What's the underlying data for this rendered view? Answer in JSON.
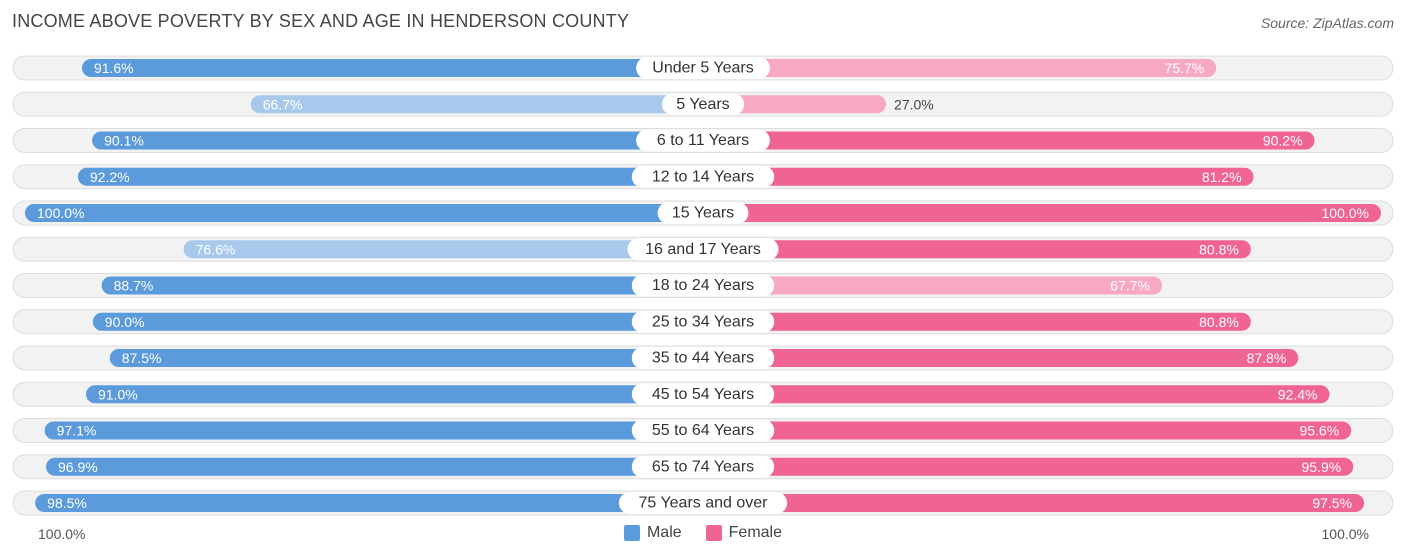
{
  "chart_data": {
    "type": "bar",
    "orientation": "horizontal-diverging",
    "title": "INCOME ABOVE POVERTY BY SEX AND AGE IN HENDERSON COUNTY",
    "source": "Source: ZipAtlas.com",
    "categories": [
      "Under 5 Years",
      "5 Years",
      "6 to 11 Years",
      "12 to 14 Years",
      "15 Years",
      "16 and 17 Years",
      "18 to 24 Years",
      "25 to 34 Years",
      "35 to 44 Years",
      "45 to 54 Years",
      "55 to 64 Years",
      "65 to 74 Years",
      "75 Years and over"
    ],
    "series": [
      {
        "name": "Male",
        "values": [
          91.6,
          66.7,
          90.1,
          92.2,
          100.0,
          76.6,
          88.7,
          90.0,
          87.5,
          91.0,
          97.1,
          96.9,
          98.5
        ],
        "labels": [
          "91.6%",
          "66.7%",
          "90.1%",
          "92.2%",
          "100.0%",
          "76.6%",
          "88.7%",
          "90.0%",
          "87.5%",
          "91.0%",
          "97.1%",
          "96.9%",
          "98.5%"
        ]
      },
      {
        "name": "Female",
        "values": [
          75.7,
          27.0,
          90.2,
          81.2,
          100.0,
          80.8,
          67.7,
          80.8,
          87.8,
          92.4,
          95.6,
          95.9,
          97.5
        ],
        "labels": [
          "75.7%",
          "27.0%",
          "90.2%",
          "81.2%",
          "100.0%",
          "80.8%",
          "67.7%",
          "80.8%",
          "87.8%",
          "92.4%",
          "95.6%",
          "95.9%",
          "97.5%"
        ]
      }
    ],
    "xlim": [
      0,
      100
    ],
    "axis_left_label": "100.0%",
    "axis_right_label": "100.0%",
    "legend": [
      "Male",
      "Female"
    ],
    "colors": {
      "male_strong": "#5b9bdc",
      "male_light": "#a8c9ec",
      "female_strong": "#f06492",
      "female_light": "#f7a8c3",
      "row_bg": "#f2f2f2",
      "row_border": "#dddddd"
    }
  }
}
